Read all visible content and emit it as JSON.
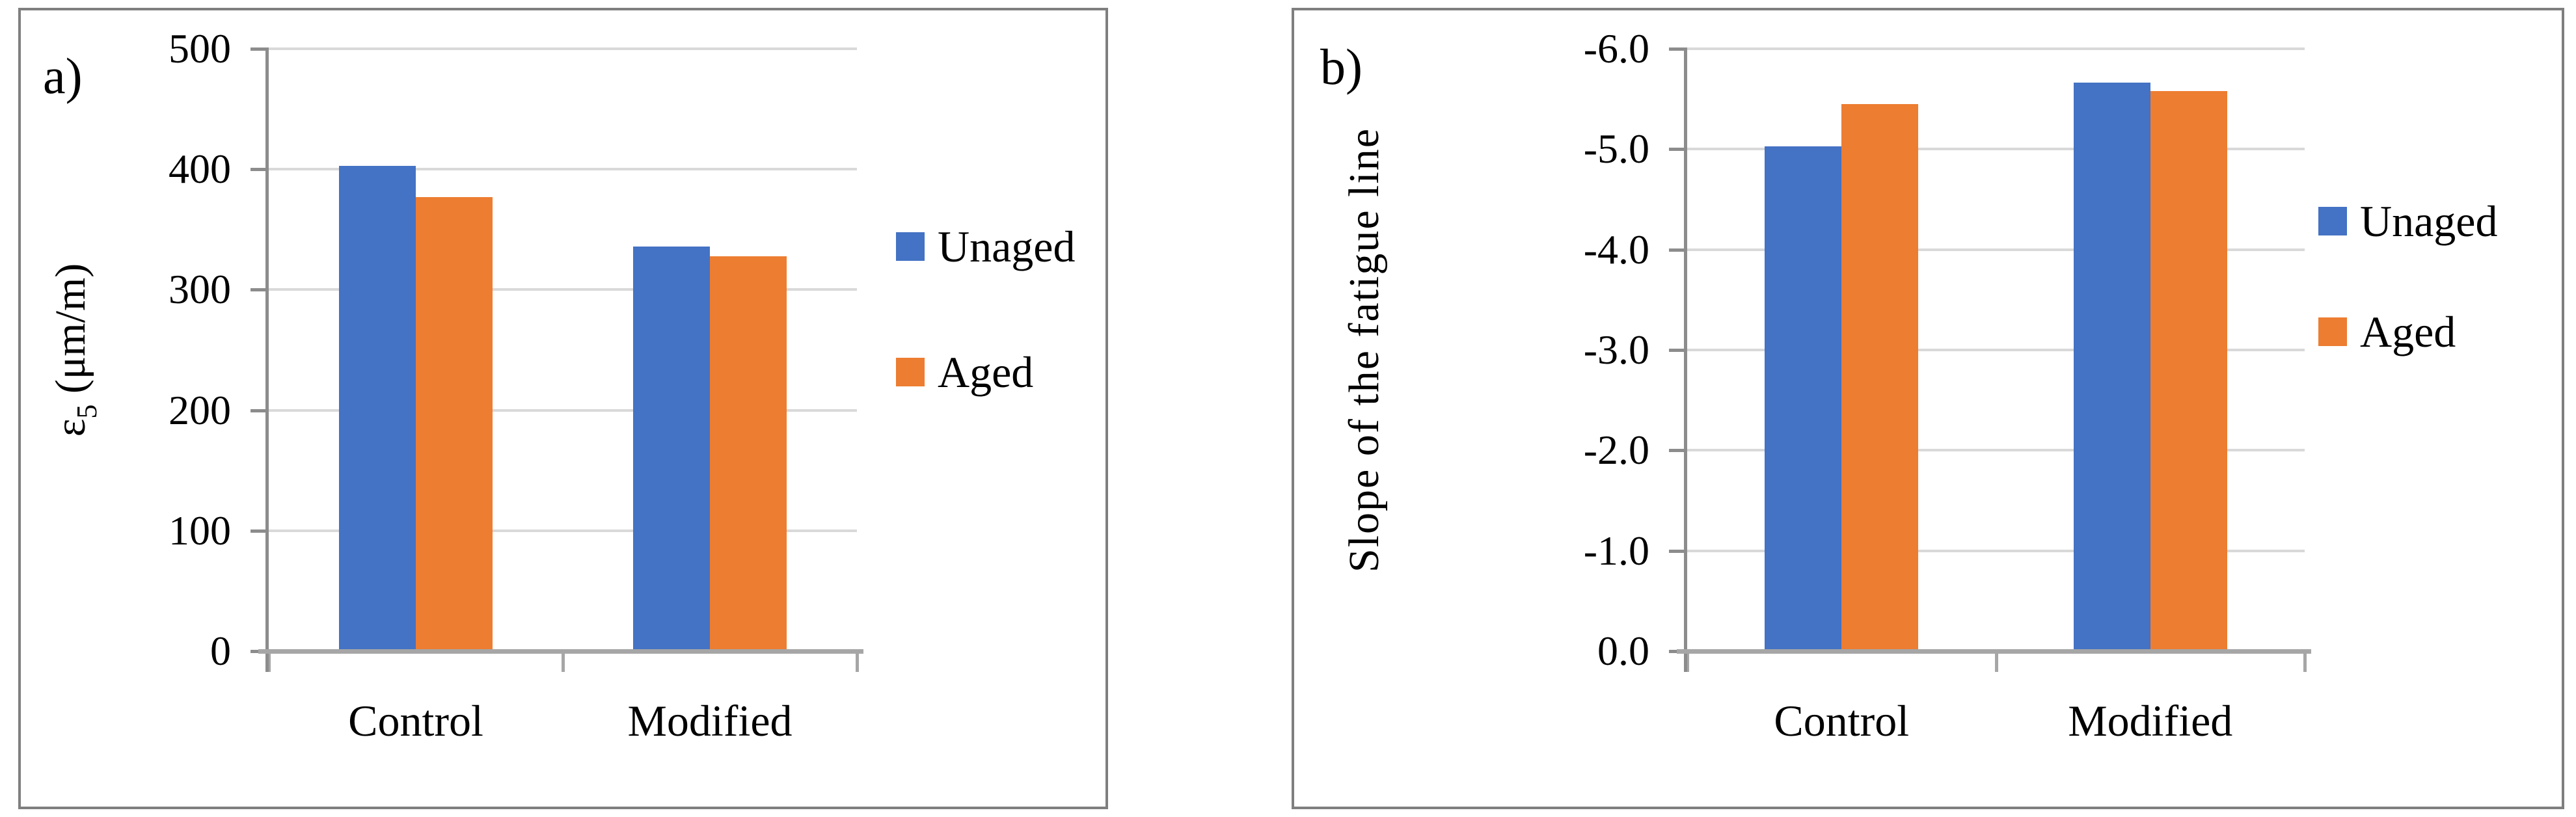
{
  "figure": {
    "background": "#FFFFFF",
    "colors": {
      "unaged": "#4472C4",
      "aged": "#ED7D31",
      "gridline": "#D9D9D9",
      "axis_line": "#A6A6A6",
      "value_axis_line": "#8C8C8C",
      "tick_mark": "#8C8C8C",
      "panel_border": "#7F7F7F",
      "text": "#000000"
    },
    "panels": [
      {
        "label": "a)",
        "ylabel_parts": {
          "base": "ε",
          "sub": "5",
          "rest": " (μm/m)"
        }
      },
      {
        "label": "b)"
      }
    ]
  },
  "chart_data": [
    {
      "type": "bar",
      "panel": "a",
      "title": "",
      "xlabel": "",
      "ylabel": "ε5 (μm/m)",
      "categories": [
        "Control",
        "Modified"
      ],
      "series": [
        {
          "name": "Unaged",
          "color": "#4472C4",
          "values": [
            403,
            336
          ]
        },
        {
          "name": "Aged",
          "color": "#ED7D31",
          "values": [
            377,
            328
          ]
        }
      ],
      "ylim": [
        0,
        500
      ],
      "yticks": [
        "0",
        "100",
        "200",
        "300",
        "400",
        "500"
      ],
      "axis_reversed": false,
      "grid": true,
      "legend_position": "right"
    },
    {
      "type": "bar",
      "panel": "b",
      "title": "",
      "xlabel": "",
      "ylabel": "Slope of the fatigue line",
      "categories": [
        "Control",
        "Modified"
      ],
      "series": [
        {
          "name": "Unaged",
          "color": "#4472C4",
          "values": [
            -5.03,
            -5.66
          ]
        },
        {
          "name": "Aged",
          "color": "#ED7D31",
          "values": [
            -5.45,
            -5.58
          ]
        }
      ],
      "ylim": [
        0,
        -6.0
      ],
      "yticks": [
        "0.0",
        "-1.0",
        "-2.0",
        "-3.0",
        "-4.0",
        "-5.0",
        "-6.0"
      ],
      "axis_reversed": true,
      "grid": true,
      "legend_position": "right"
    }
  ]
}
